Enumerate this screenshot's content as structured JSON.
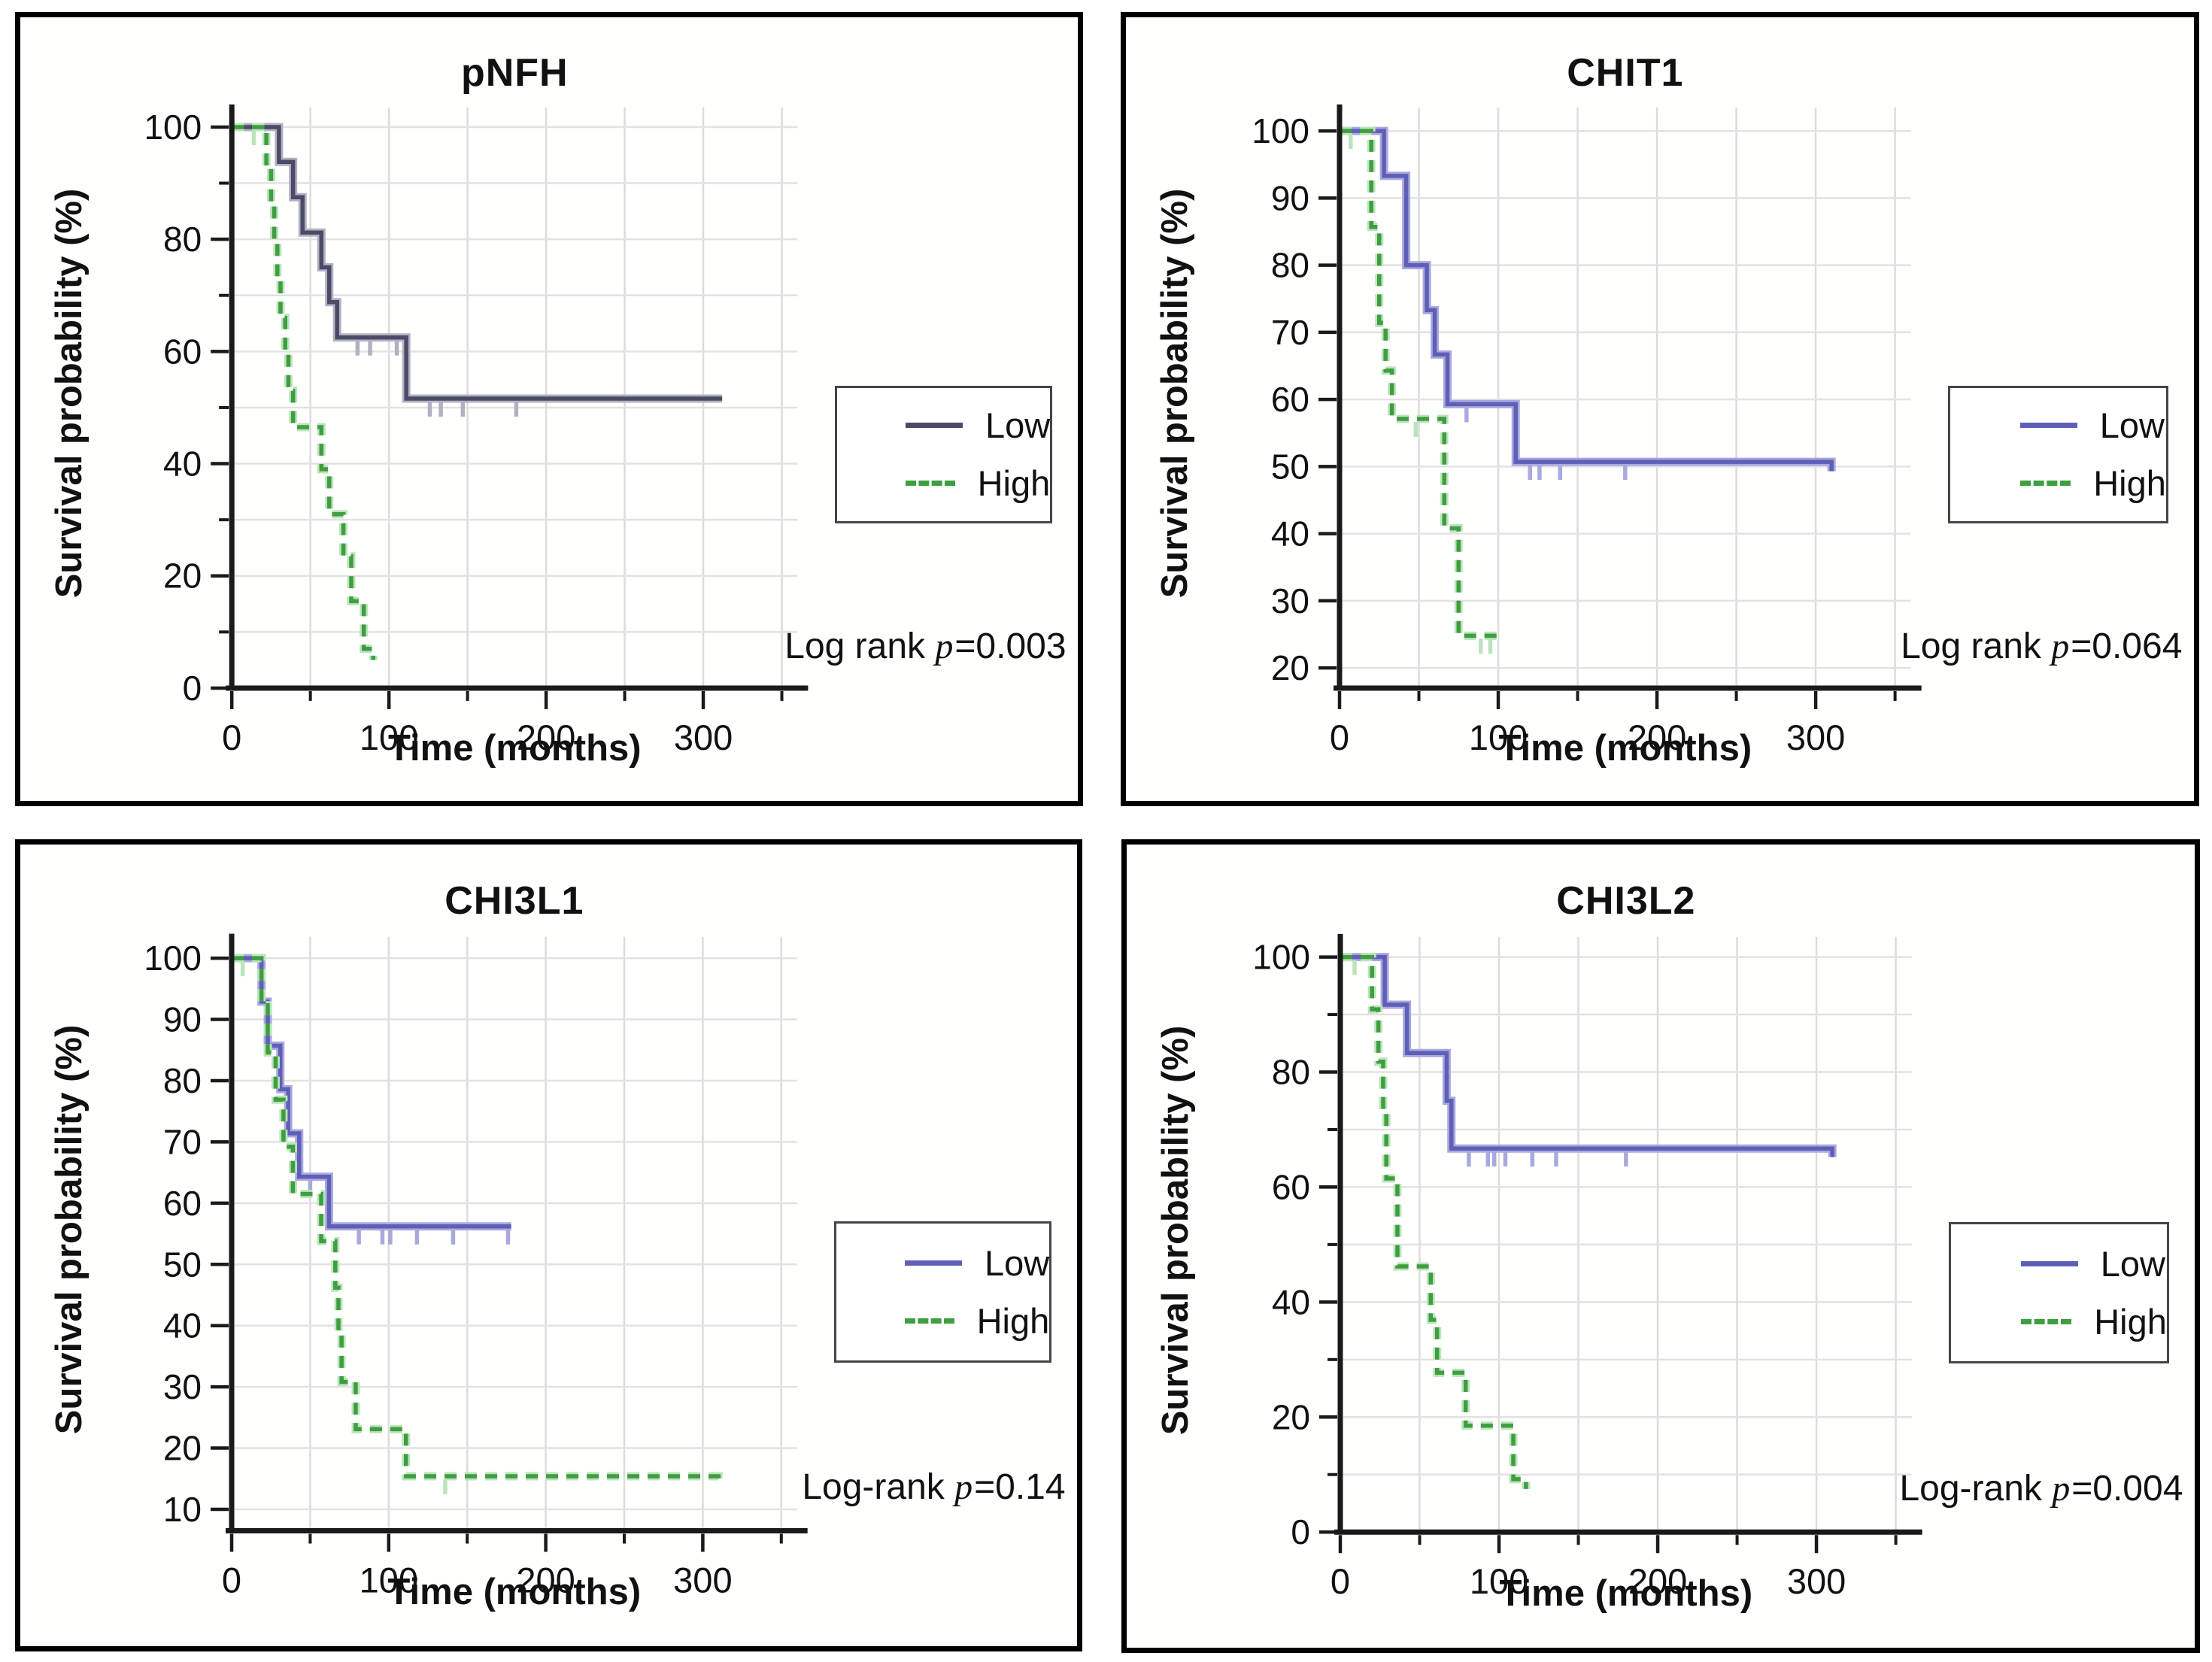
{
  "page": {
    "background": "#ffffff"
  },
  "chart_data": [
    {
      "type": "line",
      "subtype": "kaplan-meier",
      "title": "pNFH",
      "xlabel": "Time (months)",
      "ylabel": "Survival probability (%)",
      "annotation": {
        "before": "Log rank ",
        "p": "p",
        "after": "=0.003"
      },
      "xlim": [
        0,
        360
      ],
      "xticks": [
        0,
        100,
        200,
        300
      ],
      "xminors": [
        50,
        150,
        250,
        350
      ],
      "grid_x": [
        50,
        100,
        150,
        200,
        250,
        300,
        350
      ],
      "yaxis_min": 0,
      "ydisplay_max": 103.5,
      "yticks": [
        0,
        20,
        40,
        60,
        80,
        100
      ],
      "yminors": [
        10,
        30,
        50,
        70,
        90
      ],
      "plot": {
        "l": 0.2,
        "t": 0.115,
        "r": 0.735,
        "b": 0.856
      },
      "legend": [
        {
          "label": "Low",
          "style": "solid"
        },
        {
          "label": "High",
          "style": "dashed"
        }
      ],
      "colors": {
        "low": "#4b4b68",
        "low_halo": "#b1b1c3",
        "high": "#3f9e3f",
        "high_halo": "#bce4bc"
      },
      "series": [
        {
          "name": "Low",
          "style": "solid",
          "colorKey": "low",
          "points": [
            [
              0,
              100
            ],
            [
              30,
              100
            ],
            [
              30,
              93.8
            ],
            [
              39,
              93.8
            ],
            [
              39,
              87.5
            ],
            [
              45,
              87.5
            ],
            [
              45,
              81.2
            ],
            [
              57,
              81.2
            ],
            [
              57,
              75
            ],
            [
              62,
              75
            ],
            [
              62,
              68.8
            ],
            [
              67,
              68.8
            ],
            [
              67,
              62.5
            ],
            [
              111,
              62.5
            ],
            [
              111,
              51.6
            ],
            [
              312,
              51.6
            ]
          ],
          "censors": [
            [
              80,
              62.5
            ],
            [
              88,
              62.5
            ],
            [
              105,
              62.5
            ],
            [
              126,
              51.6
            ],
            [
              133,
              51.6
            ],
            [
              147,
              51.6
            ],
            [
              181,
              51.6
            ]
          ]
        },
        {
          "name": "High",
          "style": "dashed",
          "colorKey": "high",
          "points": [
            [
              0,
              100
            ],
            [
              22,
              100
            ],
            [
              22,
              93
            ],
            [
              25,
              93
            ],
            [
              25,
              86
            ],
            [
              27,
              86
            ],
            [
              27,
              79.5
            ],
            [
              29,
              79.5
            ],
            [
              29,
              72.5
            ],
            [
              31,
              72.5
            ],
            [
              31,
              66
            ],
            [
              34,
              66
            ],
            [
              34,
              59.5
            ],
            [
              36,
              59.5
            ],
            [
              36,
              53
            ],
            [
              39,
              53
            ],
            [
              39,
              46.5
            ],
            [
              57,
              46.5
            ],
            [
              57,
              39
            ],
            [
              62,
              39
            ],
            [
              62,
              31
            ],
            [
              71,
              31
            ],
            [
              71,
              23.5
            ],
            [
              76,
              23.5
            ],
            [
              76,
              15.5
            ],
            [
              84,
              15.5
            ],
            [
              84,
              7
            ],
            [
              90,
              7
            ],
            [
              90,
              5
            ]
          ],
          "censors": [
            [
              14,
              100
            ]
          ]
        }
      ]
    },
    {
      "type": "line",
      "subtype": "kaplan-meier",
      "title": "CHIT1",
      "xlabel": "Time (months)",
      "ylabel": "Survival probability (%)",
      "annotation": {
        "before": "Log rank ",
        "p": "p",
        "after": "=0.064"
      },
      "xlim": [
        0,
        360
      ],
      "xticks": [
        0,
        100,
        200,
        300
      ],
      "xminors": [
        50,
        150,
        250,
        350
      ],
      "grid_x": [
        50,
        100,
        150,
        200,
        250,
        300,
        350
      ],
      "yaxis_min": 17,
      "ydisplay_max": 103.5,
      "yticks": [
        20,
        30,
        40,
        50,
        60,
        70,
        80,
        90,
        100
      ],
      "yminors": [],
      "plot": {
        "l": 0.2,
        "t": 0.115,
        "r": 0.735,
        "b": 0.856
      },
      "legend": [
        {
          "label": "Low",
          "style": "solid"
        },
        {
          "label": "High",
          "style": "dashed"
        }
      ],
      "colors": {
        "low": "#5f5fb8",
        "low_halo": "#a9a9de",
        "high": "#3f9e3f",
        "high_halo": "#bce4bc"
      },
      "series": [
        {
          "name": "Low",
          "style": "solid",
          "colorKey": "low",
          "points": [
            [
              0,
              100
            ],
            [
              28,
              100
            ],
            [
              28,
              93.3
            ],
            [
              42,
              93.3
            ],
            [
              42,
              80
            ],
            [
              55,
              80
            ],
            [
              55,
              73.3
            ],
            [
              60,
              73.3
            ],
            [
              60,
              66.7
            ],
            [
              68,
              66.7
            ],
            [
              68,
              59.3
            ],
            [
              111,
              59.3
            ],
            [
              111,
              50.7
            ],
            [
              310,
              50.7
            ],
            [
              310,
              49.3
            ]
          ],
          "censors": [
            [
              80,
              59.3
            ],
            [
              120,
              50.7
            ],
            [
              126,
              50.7
            ],
            [
              139,
              50.7
            ],
            [
              180,
              50.7
            ]
          ]
        },
        {
          "name": "High",
          "style": "dashed",
          "colorKey": "high",
          "points": [
            [
              0,
              100
            ],
            [
              20,
              100
            ],
            [
              20,
              85.7
            ],
            [
              25,
              85.7
            ],
            [
              25,
              71.4
            ],
            [
              29,
              71.4
            ],
            [
              29,
              64.3
            ],
            [
              33,
              64.3
            ],
            [
              33,
              57.1
            ],
            [
              66,
              57.1
            ],
            [
              66,
              40.8
            ],
            [
              75,
              40.8
            ],
            [
              75,
              24.8
            ],
            [
              103,
              24.8
            ]
          ],
          "censors": [
            [
              7,
              100
            ],
            [
              48,
              57.1
            ],
            [
              89,
              24.8
            ],
            [
              95,
              24.8
            ]
          ]
        }
      ]
    },
    {
      "type": "line",
      "subtype": "kaplan-meier",
      "title": "CHI3L1",
      "xlabel": "Time (months)",
      "ylabel": "Survival probability (%)",
      "annotation": {
        "before": "Log-rank ",
        "p": "p",
        "after": "=0.14"
      },
      "xlim": [
        0,
        360
      ],
      "xticks": [
        0,
        100,
        200,
        300
      ],
      "xminors": [
        50,
        150,
        250,
        350
      ],
      "grid_x": [
        50,
        100,
        150,
        200,
        250,
        300,
        350
      ],
      "yaxis_min": 6.5,
      "ydisplay_max": 103.5,
      "yticks": [
        10,
        20,
        30,
        40,
        50,
        60,
        70,
        80,
        90,
        100
      ],
      "yminors": [],
      "plot": {
        "l": 0.2,
        "t": 0.115,
        "r": 0.735,
        "b": 0.856
      },
      "legend": [
        {
          "label": "Low",
          "style": "solid"
        },
        {
          "label": "High",
          "style": "dashed"
        }
      ],
      "colors": {
        "low": "#5f5fb8",
        "low_halo": "#a9a9de",
        "high": "#3f9e3f",
        "high_halo": "#bce4bc"
      },
      "series": [
        {
          "name": "Low",
          "style": "solid",
          "colorKey": "low",
          "points": [
            [
              0,
              100
            ],
            [
              19,
              100
            ],
            [
              19,
              92.9
            ],
            [
              23,
              92.9
            ],
            [
              23,
              85.7
            ],
            [
              31,
              85.7
            ],
            [
              31,
              78.6
            ],
            [
              36,
              78.6
            ],
            [
              36,
              71.4
            ],
            [
              43,
              71.4
            ],
            [
              43,
              64.3
            ],
            [
              62,
              64.3
            ],
            [
              62,
              56.2
            ],
            [
              178,
              56.2
            ]
          ],
          "censors": [
            [
              50,
              64.3
            ],
            [
              81,
              56.2
            ],
            [
              96,
              56.2
            ],
            [
              101,
              56.2
            ],
            [
              118,
              56.2
            ],
            [
              141,
              56.2
            ],
            [
              176,
              56.2
            ]
          ]
        },
        {
          "name": "High",
          "style": "dashed",
          "colorKey": "high",
          "points": [
            [
              0,
              100
            ],
            [
              19,
              100
            ],
            [
              19,
              92.3
            ],
            [
              23,
              92.3
            ],
            [
              23,
              84.6
            ],
            [
              28,
              84.6
            ],
            [
              28,
              76.9
            ],
            [
              33,
              76.9
            ],
            [
              33,
              69.2
            ],
            [
              39,
              69.2
            ],
            [
              39,
              61.5
            ],
            [
              57,
              61.5
            ],
            [
              57,
              53.8
            ],
            [
              66,
              53.8
            ],
            [
              66,
              46.2
            ],
            [
              68,
              46.2
            ],
            [
              68,
              38.5
            ],
            [
              70,
              38.5
            ],
            [
              70,
              30.8
            ],
            [
              79,
              30.8
            ],
            [
              79,
              23.1
            ],
            [
              111,
              23.1
            ],
            [
              111,
              15.4
            ],
            [
              310,
              15.4
            ],
            [
              310,
              13.8
            ]
          ],
          "censors": [
            [
              7,
              100
            ],
            [
              136,
              15.4
            ]
          ]
        }
      ]
    },
    {
      "type": "line",
      "subtype": "kaplan-meier",
      "title": "CHI3L2",
      "xlabel": "Time (months)",
      "ylabel": "Survival probability (%)",
      "annotation": {
        "before": "Log-rank ",
        "p": "p",
        "after": "=0.004"
      },
      "xlim": [
        0,
        360
      ],
      "xticks": [
        0,
        100,
        200,
        300
      ],
      "xminors": [
        50,
        150,
        250,
        350
      ],
      "grid_x": [
        50,
        100,
        150,
        200,
        250,
        300,
        350
      ],
      "yaxis_min": 0,
      "ydisplay_max": 103.5,
      "yticks": [
        0,
        20,
        40,
        60,
        80,
        100
      ],
      "yminors": [
        10,
        30,
        50,
        70,
        90
      ],
      "plot": {
        "l": 0.2,
        "t": 0.115,
        "r": 0.735,
        "b": 0.856
      },
      "legend": [
        {
          "label": "Low",
          "style": "solid"
        },
        {
          "label": "High",
          "style": "dashed"
        }
      ],
      "colors": {
        "low": "#5f5fb8",
        "low_halo": "#a9a9de",
        "high": "#3f9e3f",
        "high_halo": "#bce4bc"
      },
      "series": [
        {
          "name": "Low",
          "style": "solid",
          "colorKey": "low",
          "points": [
            [
              0,
              100
            ],
            [
              28,
              100
            ],
            [
              28,
              91.7
            ],
            [
              42,
              91.7
            ],
            [
              42,
              83.3
            ],
            [
              67,
              83.3
            ],
            [
              67,
              75
            ],
            [
              70,
              75
            ],
            [
              70,
              66.7
            ],
            [
              310,
              66.7
            ],
            [
              310,
              65.2
            ]
          ],
          "censors": [
            [
              81,
              66.7
            ],
            [
              93,
              66.7
            ],
            [
              97,
              66.7
            ],
            [
              104,
              66.7
            ],
            [
              121,
              66.7
            ],
            [
              136,
              66.7
            ],
            [
              180,
              66.7
            ]
          ]
        },
        {
          "name": "High",
          "style": "dashed",
          "colorKey": "high",
          "points": [
            [
              0,
              100
            ],
            [
              20,
              100
            ],
            [
              20,
              90.9
            ],
            [
              24,
              90.9
            ],
            [
              24,
              81.8
            ],
            [
              27,
              81.8
            ],
            [
              27,
              72.7
            ],
            [
              29,
              72.7
            ],
            [
              29,
              61.5
            ],
            [
              36,
              61.5
            ],
            [
              36,
              46.2
            ],
            [
              57,
              46.2
            ],
            [
              57,
              36.9
            ],
            [
              61,
              36.9
            ],
            [
              61,
              27.7
            ],
            [
              79,
              27.7
            ],
            [
              79,
              18.5
            ],
            [
              109,
              18.5
            ],
            [
              109,
              9.2
            ],
            [
              117,
              9.2
            ],
            [
              117,
              7.5
            ]
          ],
          "censors": [
            [
              9,
              100
            ]
          ]
        }
      ]
    }
  ]
}
